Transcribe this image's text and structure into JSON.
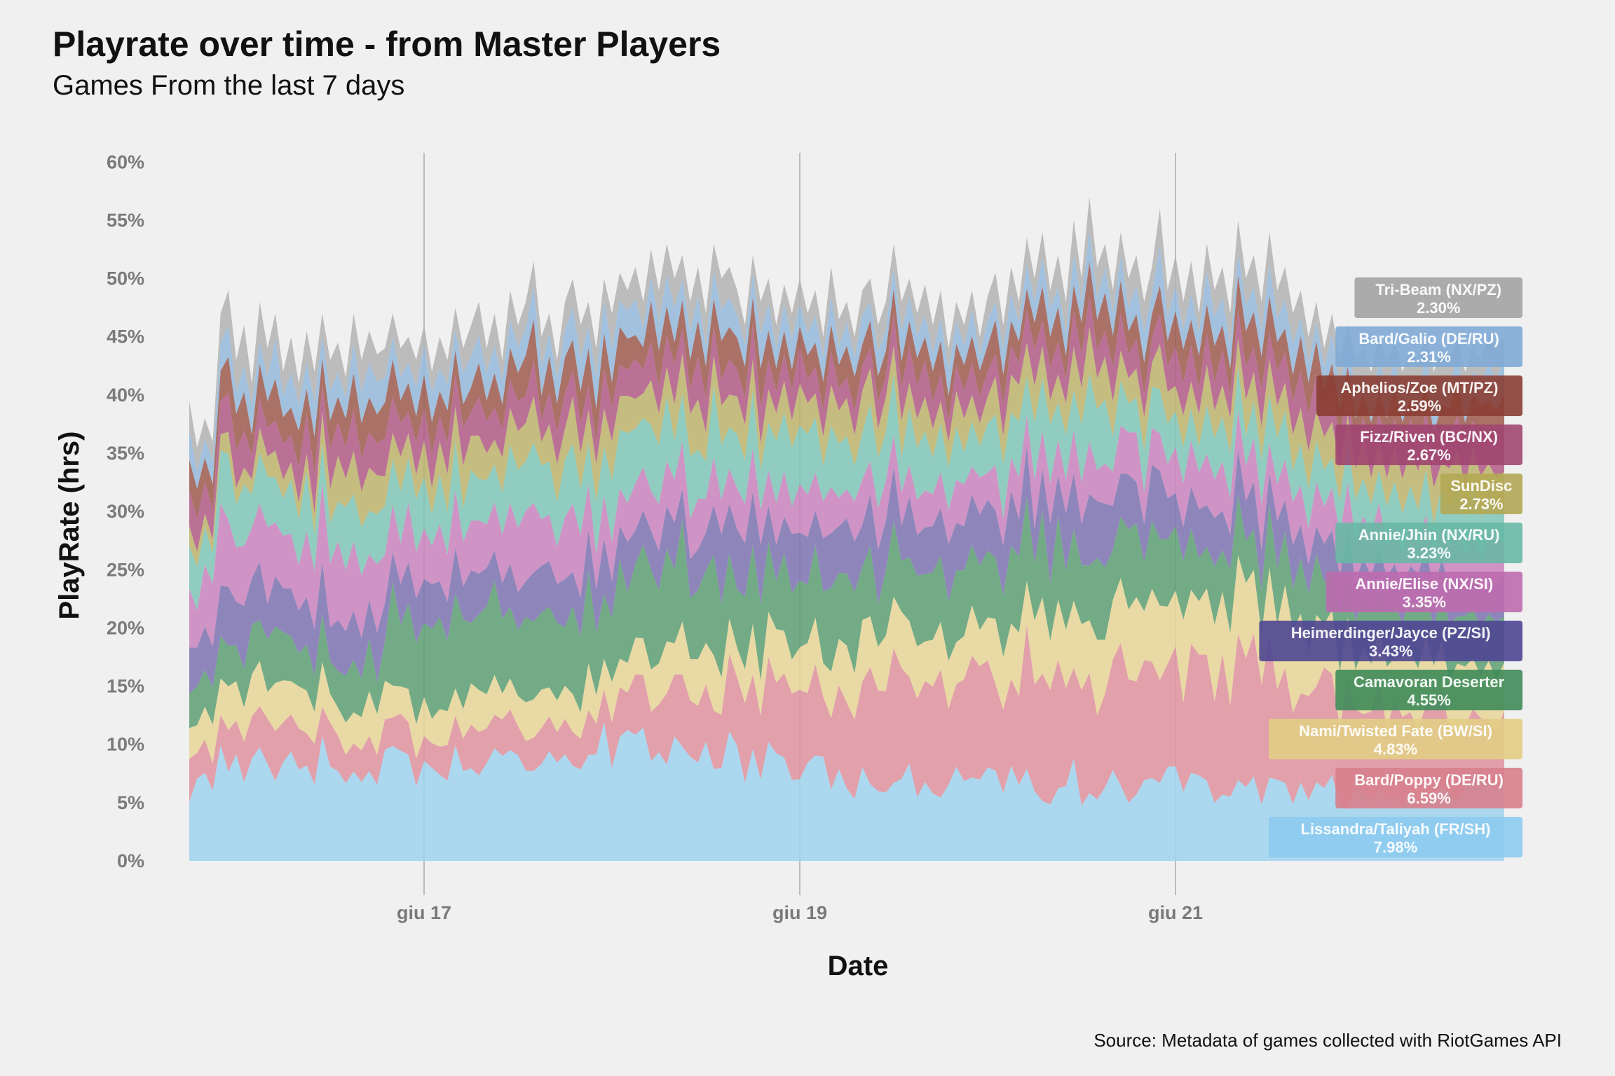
{
  "chart_data": {
    "type": "area",
    "title": "Playrate over time - from Master Players",
    "subtitle": "Games From the last 7 days",
    "xlabel": "Date",
    "ylabel": "PlayRate (hrs)",
    "caption": "Source: Metadata of games collected with RiotGames API",
    "ylim": [
      0,
      62
    ],
    "yticks": [
      "0%",
      "5%",
      "10%",
      "15%",
      "20%",
      "25%",
      "30%",
      "35%",
      "40%",
      "45%",
      "50%",
      "55%",
      "60%"
    ],
    "xlim": [
      "2021-06-15 18:00",
      "2021-06-22 18:00"
    ],
    "xticks": [
      {
        "label": "giu 17",
        "date": "2021-06-17 00:00"
      },
      {
        "label": "giu 19",
        "date": "2021-06-19 00:00"
      },
      {
        "label": "giu 21",
        "date": "2021-06-21 00:00"
      }
    ],
    "stack_order": "bottom-to-top",
    "grid": "vertical-major-only",
    "legend": "direct labels at right edge",
    "series": [
      {
        "name": "Lissandra/Taliyah (FR/SH)",
        "value_label": "7.98%",
        "color": "#9fd2ee",
        "label_color": "#8ccbee",
        "latest": 7.98
      },
      {
        "name": "Bard/Poppy (DE/RU)",
        "value_label": "6.59%",
        "color": "#df929d",
        "label_color": "#d77f8c",
        "latest": 6.59
      },
      {
        "name": "Nami/Twisted Fate (BW/SI)",
        "value_label": "4.83%",
        "color": "#e8d596",
        "label_color": "#e2cd85",
        "latest": 4.83
      },
      {
        "name": "Camavoran Deserter",
        "value_label": "4.55%",
        "color": "#5c9f72",
        "label_color": "#3f8b5a",
        "latest": 4.55
      },
      {
        "name": "Heimerdinger/Jayce (PZ/SI)",
        "value_label": "3.43%",
        "color": "#7d73b0",
        "label_color": "#4f4694",
        "latest": 3.43
      },
      {
        "name": "Annie/Elise (NX/SI)",
        "value_label": "3.35%",
        "color": "#c982bd",
        "label_color": "#bd6bae",
        "latest": 3.35
      },
      {
        "name": "Annie/Jhin (NX/RU)",
        "value_label": "3.23%",
        "color": "#7fc6b6",
        "label_color": "#68b8a5",
        "latest": 3.23
      },
      {
        "name": "SunDisc",
        "value_label": "2.73%",
        "color": "#bdb36b",
        "label_color": "#b3a754",
        "latest": 2.73
      },
      {
        "name": "Fizz/Riven (BC/NX)",
        "value_label": "2.67%",
        "color": "#b05a85",
        "label_color": "#a04670",
        "latest": 2.67
      },
      {
        "name": "Aphelios/Zoe (MT/PZ)",
        "value_label": "2.59%",
        "color": "#9e5a4f",
        "label_color": "#8a3e33",
        "latest": 2.59
      },
      {
        "name": "Bard/Galio (DE/RU)",
        "value_label": "2.31%",
        "color": "#94b8da",
        "label_color": "#7faad6",
        "latest": 2.31
      },
      {
        "name": "Tri-Beam (NX/PZ)",
        "value_label": "2.30%",
        "color": "#b3b3b3",
        "label_color": "#a3a3a3",
        "latest": 2.3
      }
    ],
    "stack_top_points": [
      [
        "2021-06-15 18:00",
        39.5
      ],
      [
        "2021-06-15 19:00",
        35.5
      ],
      [
        "2021-06-15 20:00",
        38
      ],
      [
        "2021-06-15 21:00",
        36
      ],
      [
        "2021-06-15 22:00",
        47
      ],
      [
        "2021-06-15 23:00",
        49
      ],
      [
        "2021-06-16 00:00",
        43
      ],
      [
        "2021-06-16 01:00",
        46
      ],
      [
        "2021-06-16 02:00",
        41
      ],
      [
        "2021-06-16 03:00",
        48
      ],
      [
        "2021-06-16 04:00",
        44
      ],
      [
        "2021-06-16 05:00",
        47
      ],
      [
        "2021-06-16 06:00",
        42
      ],
      [
        "2021-06-16 07:00",
        45
      ],
      [
        "2021-06-16 08:00",
        41
      ],
      [
        "2021-06-16 09:00",
        45.5
      ],
      [
        "2021-06-16 10:00",
        42
      ],
      [
        "2021-06-16 11:00",
        47
      ],
      [
        "2021-06-16 12:00",
        43
      ],
      [
        "2021-06-16 13:00",
        44.5
      ],
      [
        "2021-06-16 14:00",
        41.5
      ],
      [
        "2021-06-16 15:00",
        47
      ],
      [
        "2021-06-16 16:00",
        43
      ],
      [
        "2021-06-16 17:00",
        45.5
      ],
      [
        "2021-06-16 18:00",
        43.5
      ],
      [
        "2021-06-16 19:00",
        44
      ],
      [
        "2021-06-16 20:00",
        47
      ],
      [
        "2021-06-16 21:00",
        44
      ],
      [
        "2021-06-16 22:00",
        45
      ],
      [
        "2021-06-16 23:00",
        43
      ],
      [
        "2021-06-17 00:00",
        46
      ],
      [
        "2021-06-17 01:00",
        42
      ],
      [
        "2021-06-17 02:00",
        45
      ],
      [
        "2021-06-17 03:00",
        43
      ],
      [
        "2021-06-17 04:00",
        47.5
      ],
      [
        "2021-06-17 05:00",
        44
      ],
      [
        "2021-06-17 06:00",
        46
      ],
      [
        "2021-06-17 07:00",
        48
      ],
      [
        "2021-06-17 08:00",
        44
      ],
      [
        "2021-06-17 09:00",
        47
      ],
      [
        "2021-06-17 10:00",
        43
      ],
      [
        "2021-06-17 11:00",
        49
      ],
      [
        "2021-06-17 12:00",
        46
      ],
      [
        "2021-06-17 13:00",
        48
      ],
      [
        "2021-06-17 14:00",
        51.5
      ],
      [
        "2021-06-17 15:00",
        45
      ],
      [
        "2021-06-17 16:00",
        47
      ],
      [
        "2021-06-17 17:00",
        43
      ],
      [
        "2021-06-17 18:00",
        48
      ],
      [
        "2021-06-17 19:00",
        50
      ],
      [
        "2021-06-17 20:00",
        46
      ],
      [
        "2021-06-17 21:00",
        48
      ],
      [
        "2021-06-17 22:00",
        44
      ],
      [
        "2021-06-17 23:00",
        50
      ],
      [
        "2021-06-18 00:00",
        47
      ],
      [
        "2021-06-18 01:00",
        50.5
      ],
      [
        "2021-06-18 02:00",
        49
      ],
      [
        "2021-06-18 03:00",
        51
      ],
      [
        "2021-06-18 04:00",
        48
      ],
      [
        "2021-06-18 05:00",
        52.5
      ],
      [
        "2021-06-18 06:00",
        49
      ],
      [
        "2021-06-18 07:00",
        53
      ],
      [
        "2021-06-18 08:00",
        50
      ],
      [
        "2021-06-18 09:00",
        52
      ],
      [
        "2021-06-18 10:00",
        48
      ],
      [
        "2021-06-18 11:00",
        51
      ],
      [
        "2021-06-18 12:00",
        47
      ],
      [
        "2021-06-18 13:00",
        53
      ],
      [
        "2021-06-18 14:00",
        50
      ],
      [
        "2021-06-18 15:00",
        51
      ],
      [
        "2021-06-18 16:00",
        49
      ],
      [
        "2021-06-18 17:00",
        46
      ],
      [
        "2021-06-18 18:00",
        52
      ],
      [
        "2021-06-18 19:00",
        48
      ],
      [
        "2021-06-18 20:00",
        50
      ],
      [
        "2021-06-18 21:00",
        46
      ],
      [
        "2021-06-18 22:00",
        49.5
      ],
      [
        "2021-06-18 23:00",
        47
      ],
      [
        "2021-06-19 00:00",
        50
      ],
      [
        "2021-06-19 01:00",
        47
      ],
      [
        "2021-06-19 02:00",
        49
      ],
      [
        "2021-06-19 03:00",
        45
      ],
      [
        "2021-06-19 04:00",
        51
      ],
      [
        "2021-06-19 05:00",
        46.5
      ],
      [
        "2021-06-19 06:00",
        48
      ],
      [
        "2021-06-19 07:00",
        45
      ],
      [
        "2021-06-19 08:00",
        49
      ],
      [
        "2021-06-19 09:00",
        50
      ],
      [
        "2021-06-19 10:00",
        46
      ],
      [
        "2021-06-19 11:00",
        48
      ],
      [
        "2021-06-19 12:00",
        53
      ],
      [
        "2021-06-19 13:00",
        48
      ],
      [
        "2021-06-19 14:00",
        50
      ],
      [
        "2021-06-19 15:00",
        47
      ],
      [
        "2021-06-19 16:00",
        49.5
      ],
      [
        "2021-06-19 17:00",
        46
      ],
      [
        "2021-06-19 18:00",
        49
      ],
      [
        "2021-06-19 19:00",
        44
      ],
      [
        "2021-06-19 20:00",
        48
      ],
      [
        "2021-06-19 21:00",
        46
      ],
      [
        "2021-06-19 22:00",
        49
      ],
      [
        "2021-06-19 23:00",
        45
      ],
      [
        "2021-06-20 00:00",
        48.5
      ],
      [
        "2021-06-20 01:00",
        50.5
      ],
      [
        "2021-06-20 02:00",
        46
      ],
      [
        "2021-06-20 03:00",
        51
      ],
      [
        "2021-06-20 04:00",
        48
      ],
      [
        "2021-06-20 05:00",
        53.5
      ],
      [
        "2021-06-20 06:00",
        50
      ],
      [
        "2021-06-20 07:00",
        54
      ],
      [
        "2021-06-20 08:00",
        49
      ],
      [
        "2021-06-20 09:00",
        52
      ],
      [
        "2021-06-20 10:00",
        48
      ],
      [
        "2021-06-20 11:00",
        55
      ],
      [
        "2021-06-20 12:00",
        50
      ],
      [
        "2021-06-20 13:00",
        57
      ],
      [
        "2021-06-20 14:00",
        51
      ],
      [
        "2021-06-20 15:00",
        53
      ],
      [
        "2021-06-20 16:00",
        49
      ],
      [
        "2021-06-20 17:00",
        54
      ],
      [
        "2021-06-20 18:00",
        50
      ],
      [
        "2021-06-20 19:00",
        52
      ],
      [
        "2021-06-20 20:00",
        48
      ],
      [
        "2021-06-20 21:00",
        51
      ],
      [
        "2021-06-20 22:00",
        56
      ],
      [
        "2021-06-20 23:00",
        49
      ],
      [
        "2021-06-21 00:00",
        52
      ],
      [
        "2021-06-21 01:00",
        48
      ],
      [
        "2021-06-21 02:00",
        51.5
      ],
      [
        "2021-06-21 03:00",
        47
      ],
      [
        "2021-06-21 04:00",
        53
      ],
      [
        "2021-06-21 05:00",
        49
      ],
      [
        "2021-06-21 06:00",
        51
      ],
      [
        "2021-06-21 07:00",
        47
      ],
      [
        "2021-06-21 08:00",
        55
      ],
      [
        "2021-06-21 09:00",
        50
      ],
      [
        "2021-06-21 10:00",
        52
      ],
      [
        "2021-06-21 11:00",
        48
      ],
      [
        "2021-06-21 12:00",
        54
      ],
      [
        "2021-06-21 13:00",
        49
      ],
      [
        "2021-06-21 14:00",
        51
      ],
      [
        "2021-06-21 15:00",
        47
      ],
      [
        "2021-06-21 16:00",
        49
      ],
      [
        "2021-06-21 17:00",
        45
      ],
      [
        "2021-06-21 18:00",
        48
      ],
      [
        "2021-06-21 19:00",
        44
      ],
      [
        "2021-06-21 20:00",
        47
      ],
      [
        "2021-06-21 21:00",
        43
      ],
      [
        "2021-06-21 22:00",
        46
      ],
      [
        "2021-06-21 23:00",
        43
      ],
      [
        "2021-06-22 00:00",
        44
      ],
      [
        "2021-06-22 01:00",
        42
      ],
      [
        "2021-06-22 02:00",
        45
      ],
      [
        "2021-06-22 03:00",
        43
      ],
      [
        "2021-06-22 04:00",
        44.5
      ],
      [
        "2021-06-22 05:00",
        42
      ],
      [
        "2021-06-22 06:00",
        44
      ],
      [
        "2021-06-22 07:00",
        43
      ],
      [
        "2021-06-22 08:00",
        45
      ],
      [
        "2021-06-22 09:00",
        42
      ],
      [
        "2021-06-22 10:00",
        44
      ],
      [
        "2021-06-22 11:00",
        43
      ],
      [
        "2021-06-22 12:00",
        45
      ],
      [
        "2021-06-22 13:00",
        42
      ],
      [
        "2021-06-22 14:00",
        44
      ],
      [
        "2021-06-22 15:00",
        43
      ],
      [
        "2021-06-22 16:00",
        45
      ],
      [
        "2021-06-22 17:00",
        44
      ],
      [
        "2021-06-22 18:00",
        45
      ]
    ]
  }
}
